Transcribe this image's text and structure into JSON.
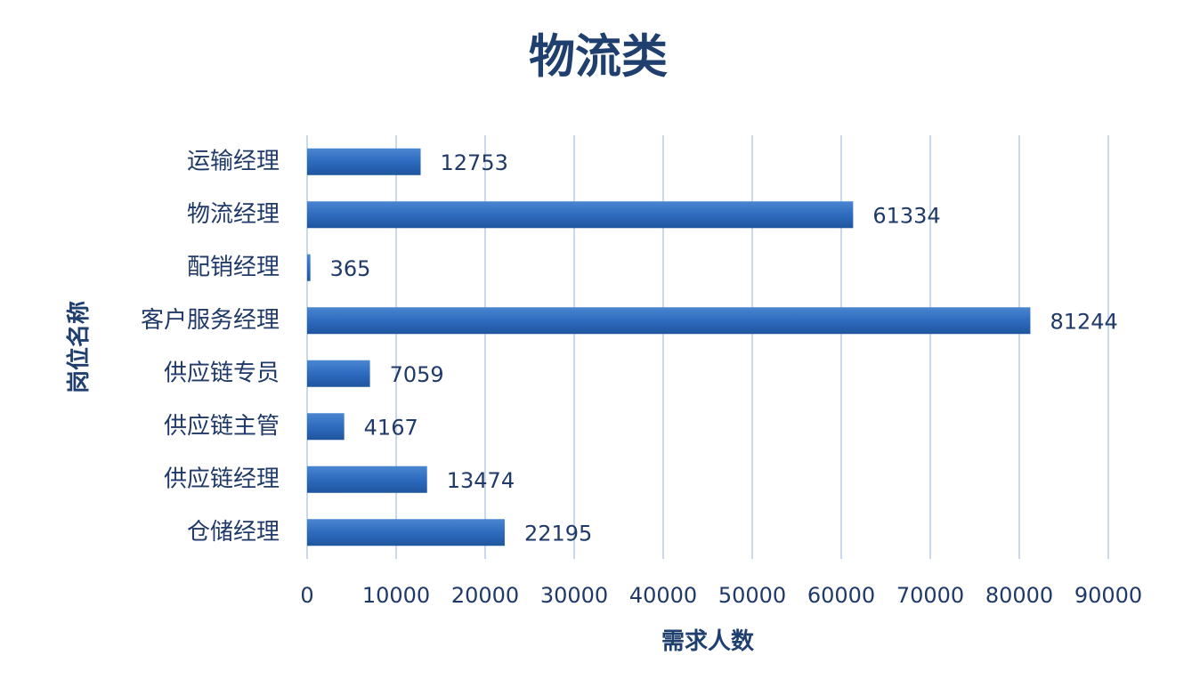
{
  "chart_data": {
    "type": "bar",
    "orientation": "horizontal",
    "title": "物流类",
    "x_label": "需求人数",
    "y_label": "岗位名称",
    "categories": [
      "运输经理",
      "物流经理",
      "配销经理",
      "客户服务经理",
      "供应链专员",
      "供应链主管",
      "供应链经理",
      "仓储经理"
    ],
    "values": [
      12753,
      61334,
      365,
      81244,
      7059,
      4167,
      13474,
      22195
    ],
    "color": "#2e6bbf",
    "xlim": [
      0,
      90000
    ],
    "xticks": [
      0,
      10000,
      20000,
      30000,
      40000,
      50000,
      60000,
      70000,
      80000,
      90000
    ],
    "grid": true
  }
}
